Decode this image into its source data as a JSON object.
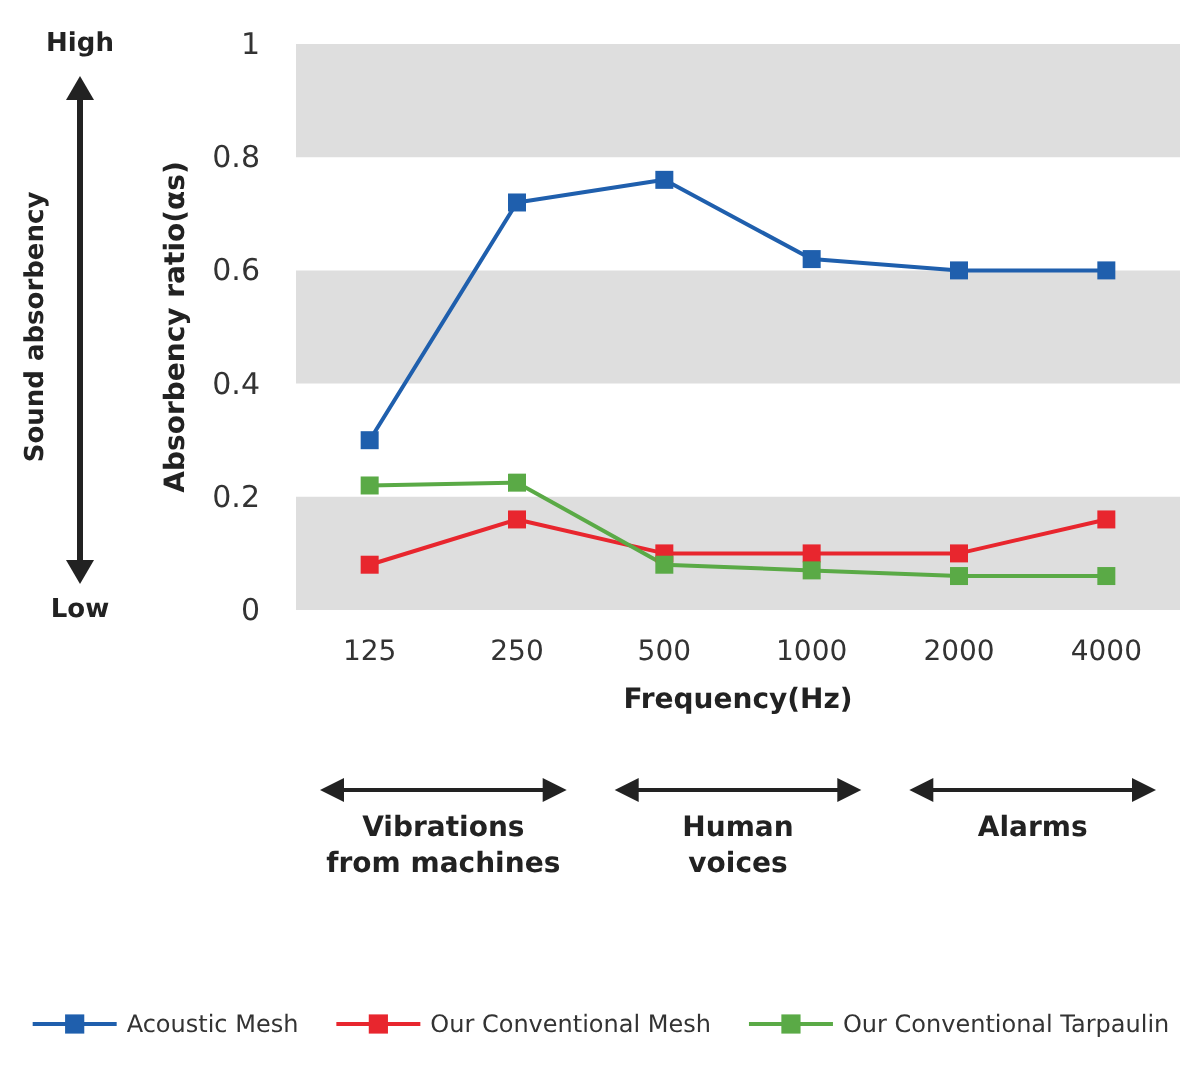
{
  "chart_data": {
    "type": "line",
    "xlabel": "Frequency(Hz)",
    "ylabel": "Absorbency ratio(αs)",
    "categories": [
      "125",
      "250",
      "500",
      "1000",
      "2000",
      "4000"
    ],
    "series": [
      {
        "name": "Acoustic Mesh",
        "color": "#1f5fad",
        "values": [
          0.3,
          0.72,
          0.76,
          0.62,
          0.6,
          0.6
        ]
      },
      {
        "name": "Our Conventional Mesh",
        "color": "#e8262e",
        "values": [
          0.08,
          0.16,
          0.1,
          0.1,
          0.1,
          0.16
        ]
      },
      {
        "name": "Our Conventional Tarpaulin",
        "color": "#5aaa46",
        "values": [
          0.22,
          0.225,
          0.08,
          0.07,
          0.06,
          0.06
        ]
      }
    ],
    "ylim": [
      0,
      1
    ],
    "yticks": [
      0,
      0.2,
      0.4,
      0.6,
      0.8,
      1
    ],
    "bands": [
      {
        "axis": "y",
        "from": 0,
        "to": 0.2,
        "color": "#dedede"
      },
      {
        "axis": "y",
        "from": 0.4,
        "to": 0.6,
        "color": "#dedede"
      },
      {
        "axis": "y",
        "from": 0.8,
        "to": 1,
        "color": "#dedede"
      }
    ],
    "legend": "bottom",
    "marker": "square",
    "line_style": "solid",
    "annotations": [
      "High",
      "Low",
      "Sound absorbency",
      "Vibrations\nfrom machines",
      "Human\nvoices",
      "Alarms"
    ]
  }
}
